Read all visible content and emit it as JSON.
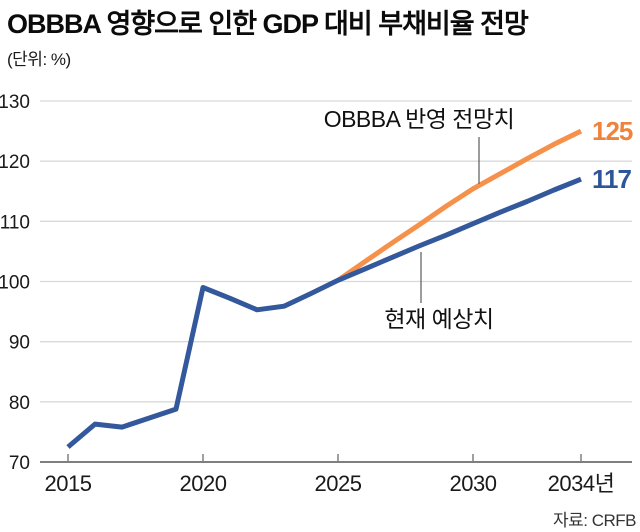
{
  "header": {
    "title": "OBBBA 영향으로 인한 GDP 대비 부채비율 전망",
    "unit_label": "(단위: %)"
  },
  "source": "자료: CRFB",
  "colors": {
    "current_line": "#33589B",
    "obbba_line": "#F5914B",
    "gridline": "#D9D9D9",
    "axis": "#7F7F7F",
    "tick": "#7F7F7F",
    "pointer": "#666666",
    "obbba_value_text": "#F0833C",
    "current_value_text": "#2F549B"
  },
  "annotations": {
    "obbba_label": "OBBBA 반영 전망치",
    "current_label": "현재 예상치",
    "obbba_end_value": "125",
    "current_end_value": "117"
  },
  "chart_data": {
    "type": "line",
    "title": "OBBBA 영향으로 인한 GDP 대비 부채비율 전망",
    "unit": "%",
    "xlabel": "",
    "ylabel": "%",
    "xlim": [
      2015,
      2034
    ],
    "ylim": [
      70,
      130
    ],
    "grid": "horizontal",
    "legend": "inline-annotations",
    "x": [
      2015,
      2016,
      2017,
      2018,
      2019,
      2020,
      2021,
      2022,
      2023,
      2024,
      2025,
      2026,
      2027,
      2028,
      2029,
      2030,
      2031,
      2032,
      2033,
      2034
    ],
    "series": [
      {
        "name": "현재 예상치",
        "color_key": "current_line",
        "end_label": "117",
        "values": [
          72.5,
          76.3,
          75.8,
          77.3,
          78.8,
          99.0,
          97.2,
          95.3,
          95.9,
          98.0,
          100.2,
          102.1,
          104.0,
          105.9,
          107.7,
          109.6,
          111.5,
          113.3,
          115.2,
          117.0
        ]
      },
      {
        "name": "OBBBA 반영 전망치",
        "color_key": "obbba_line",
        "end_label": "125",
        "values": [
          null,
          null,
          null,
          null,
          null,
          null,
          null,
          null,
          null,
          null,
          100.2,
          103.3,
          106.4,
          109.4,
          112.5,
          115.4,
          117.9,
          120.4,
          122.8,
          125.0
        ]
      }
    ],
    "xticks": [
      {
        "x": 2015,
        "label": "2015"
      },
      {
        "x": 2020,
        "label": "2020"
      },
      {
        "x": 2025,
        "label": "2025"
      },
      {
        "x": 2030,
        "label": "2030"
      },
      {
        "x": 2034,
        "label": "2034년"
      }
    ],
    "yticks": [
      70,
      80,
      90,
      100,
      110,
      120,
      130
    ]
  }
}
